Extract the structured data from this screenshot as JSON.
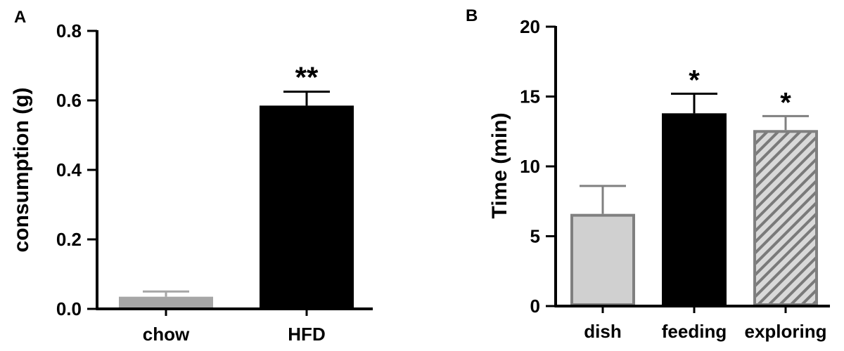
{
  "chart_data": [
    {
      "type": "bar",
      "panel_label": "A",
      "ylabel": "consumption (g)",
      "xlabel": "",
      "categories": [
        "chow",
        "HFD"
      ],
      "values": [
        0.035,
        0.585
      ],
      "error_upper": [
        0.05,
        0.625
      ],
      "bar_styles": [
        "light-gray",
        "black"
      ],
      "bar_colors": [
        "#a6a6a6",
        "#000000"
      ],
      "significance": [
        "",
        "**"
      ],
      "ylim": [
        0,
        0.8
      ],
      "yticks": [
        "0.0",
        "0.2",
        "0.4",
        "0.6",
        "0.8"
      ],
      "ytick_values": [
        0,
        0.2,
        0.4,
        0.6,
        0.8
      ],
      "grid": false,
      "legend": "none"
    },
    {
      "type": "bar",
      "panel_label": "B",
      "ylabel": "Time (min)",
      "xlabel": "",
      "categories": [
        "dish",
        "feeding",
        "exploring"
      ],
      "values": [
        6.6,
        13.8,
        12.6
      ],
      "error_upper": [
        8.6,
        15.2,
        13.6
      ],
      "bar_styles": [
        "light-gray",
        "black",
        "hatched"
      ],
      "bar_colors": [
        "#d0d0d0",
        "#000000",
        "#808080"
      ],
      "significance": [
        "",
        "*",
        "*"
      ],
      "ylim": [
        0,
        20
      ],
      "yticks": [
        "0",
        "5",
        "10",
        "15",
        "20"
      ],
      "ytick_values": [
        0,
        5,
        10,
        15,
        20
      ],
      "grid": false,
      "legend": "none"
    }
  ]
}
